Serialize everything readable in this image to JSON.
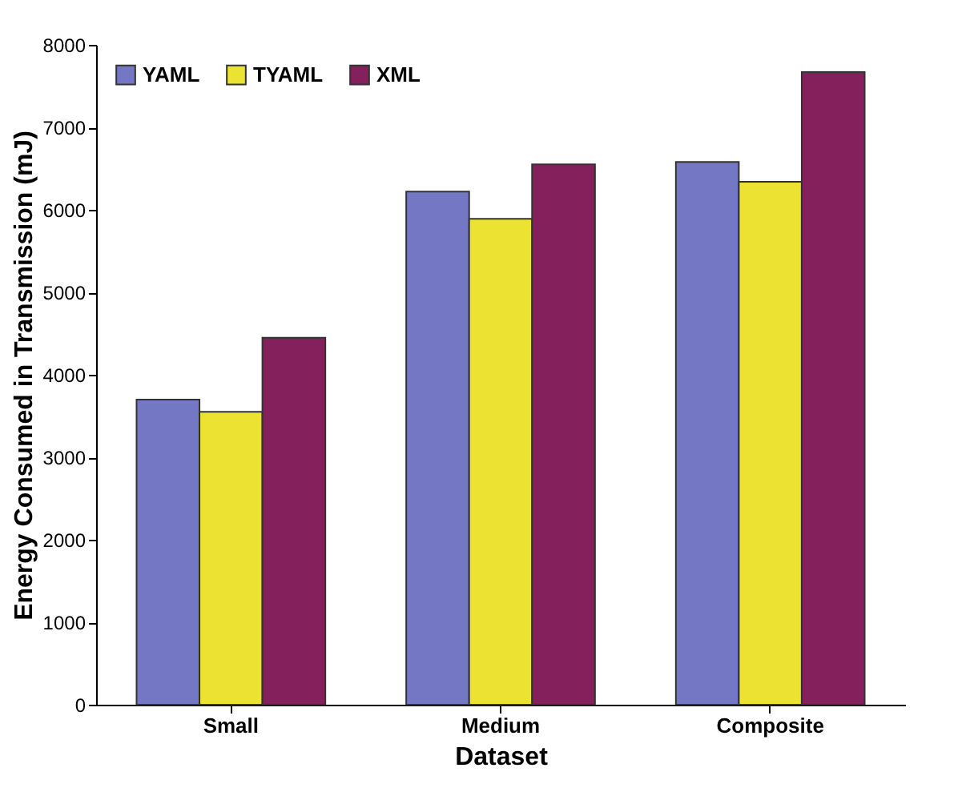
{
  "chart_data": {
    "type": "bar",
    "xlabel": "Dataset",
    "ylabel": "Energy Consumed in Transmission (mJ)",
    "categories": [
      "Small",
      "Medium",
      "Composite"
    ],
    "series": [
      {
        "name": "YAML",
        "color": "#7478c4",
        "values": [
          3700,
          6220,
          6580
        ]
      },
      {
        "name": "TYAML",
        "color": "#ece232",
        "values": [
          3550,
          5890,
          6340
        ]
      },
      {
        "name": "XML",
        "color": "#84205c",
        "values": [
          4450,
          6550,
          7670
        ]
      }
    ],
    "ylim": [
      0,
      8000
    ],
    "yticks": [
      0,
      1000,
      2000,
      3000,
      4000,
      5000,
      6000,
      7000,
      8000
    ],
    "grid": false,
    "legend": "top left"
  }
}
